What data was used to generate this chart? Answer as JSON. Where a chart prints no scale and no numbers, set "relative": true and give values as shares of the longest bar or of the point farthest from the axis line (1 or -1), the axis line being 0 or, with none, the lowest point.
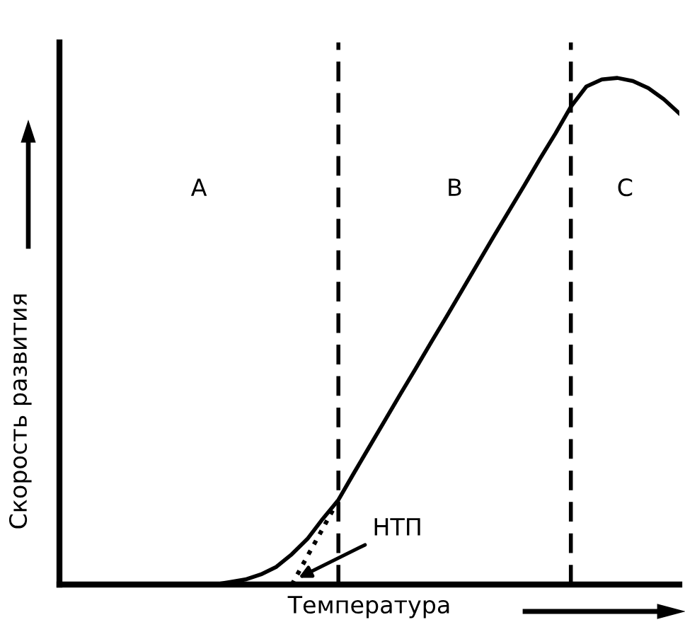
{
  "chart_data": {
    "type": "line",
    "relative": true,
    "xlabel": "Температура",
    "ylabel": "Скорость развития",
    "categories": [
      null,
      null,
      null,
      null,
      null,
      null,
      null,
      null,
      null,
      null,
      null,
      null,
      null,
      null,
      null,
      null,
      null,
      null,
      null,
      null,
      null,
      null,
      null,
      null,
      null,
      null,
      null,
      null,
      null,
      null,
      null,
      null,
      null,
      null,
      null,
      null,
      null,
      null,
      null,
      null,
      null
    ],
    "series": [
      {
        "color": "#000000",
        "line_style": "solid",
        "values": [
          0,
          0,
          0,
          0,
          0,
          0,
          0,
          0,
          0,
          0,
          0,
          0.005,
          0.01,
          0.02,
          0.035,
          0.06,
          0.09,
          0.13,
          0.167,
          0.22,
          0.272,
          0.324,
          0.376,
          0.427,
          0.479,
          0.53,
          0.582,
          0.634,
          0.686,
          0.737,
          0.788,
          0.84,
          0.89,
          0.943,
          0.983,
          0.997,
          1.0,
          0.994,
          0.98,
          0.958,
          0.93
        ]
      },
      {
        "color": "#000000",
        "line_style": "dotted",
        "values": [
          null,
          null,
          null,
          null,
          null,
          null,
          null,
          null,
          null,
          null,
          null,
          null,
          null,
          null,
          null,
          0,
          0.056,
          0.111,
          0.167,
          null,
          null,
          null,
          null,
          null,
          null,
          null,
          null,
          null,
          null,
          null,
          null,
          null,
          null,
          null,
          null,
          null,
          null,
          null,
          null,
          null,
          null
        ]
      }
    ],
    "annotations": [
      "A",
      "B",
      "C",
      "НТП"
    ],
    "legend": false
  }
}
